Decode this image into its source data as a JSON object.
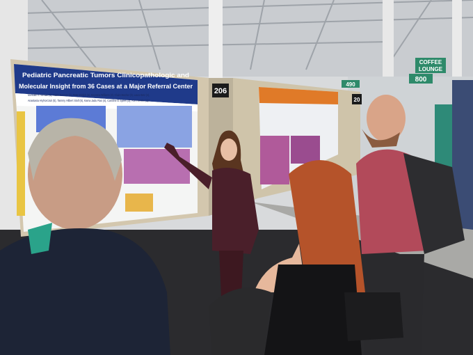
{
  "poster": {
    "title_lines": [
      "Pediatric Pancreatic Tumors Clinicopathologic and",
      "Molecular Insight from 36 Cases at a Major Referral Center"
    ],
    "author_lines": [
      "Meredith K Herman (1), Robin Petroze (2), Peter Ehrlich (3), Keyonna Williams (3), Claire Mosher (3), Laura Betz (4),",
      "Anastasia Hryhorczuk (5), Tammy Hilbert Stoll (6), Kama Jadu Rao (4), Caroline E Sykes (3), Ann Hersler (1)*"
    ]
  },
  "booth_numbers": [
    "206",
    "20"
  ],
  "signs": {
    "lounge": [
      "COFFEE",
      "LOUNGE"
    ],
    "number": "800",
    "aisle": "490"
  }
}
